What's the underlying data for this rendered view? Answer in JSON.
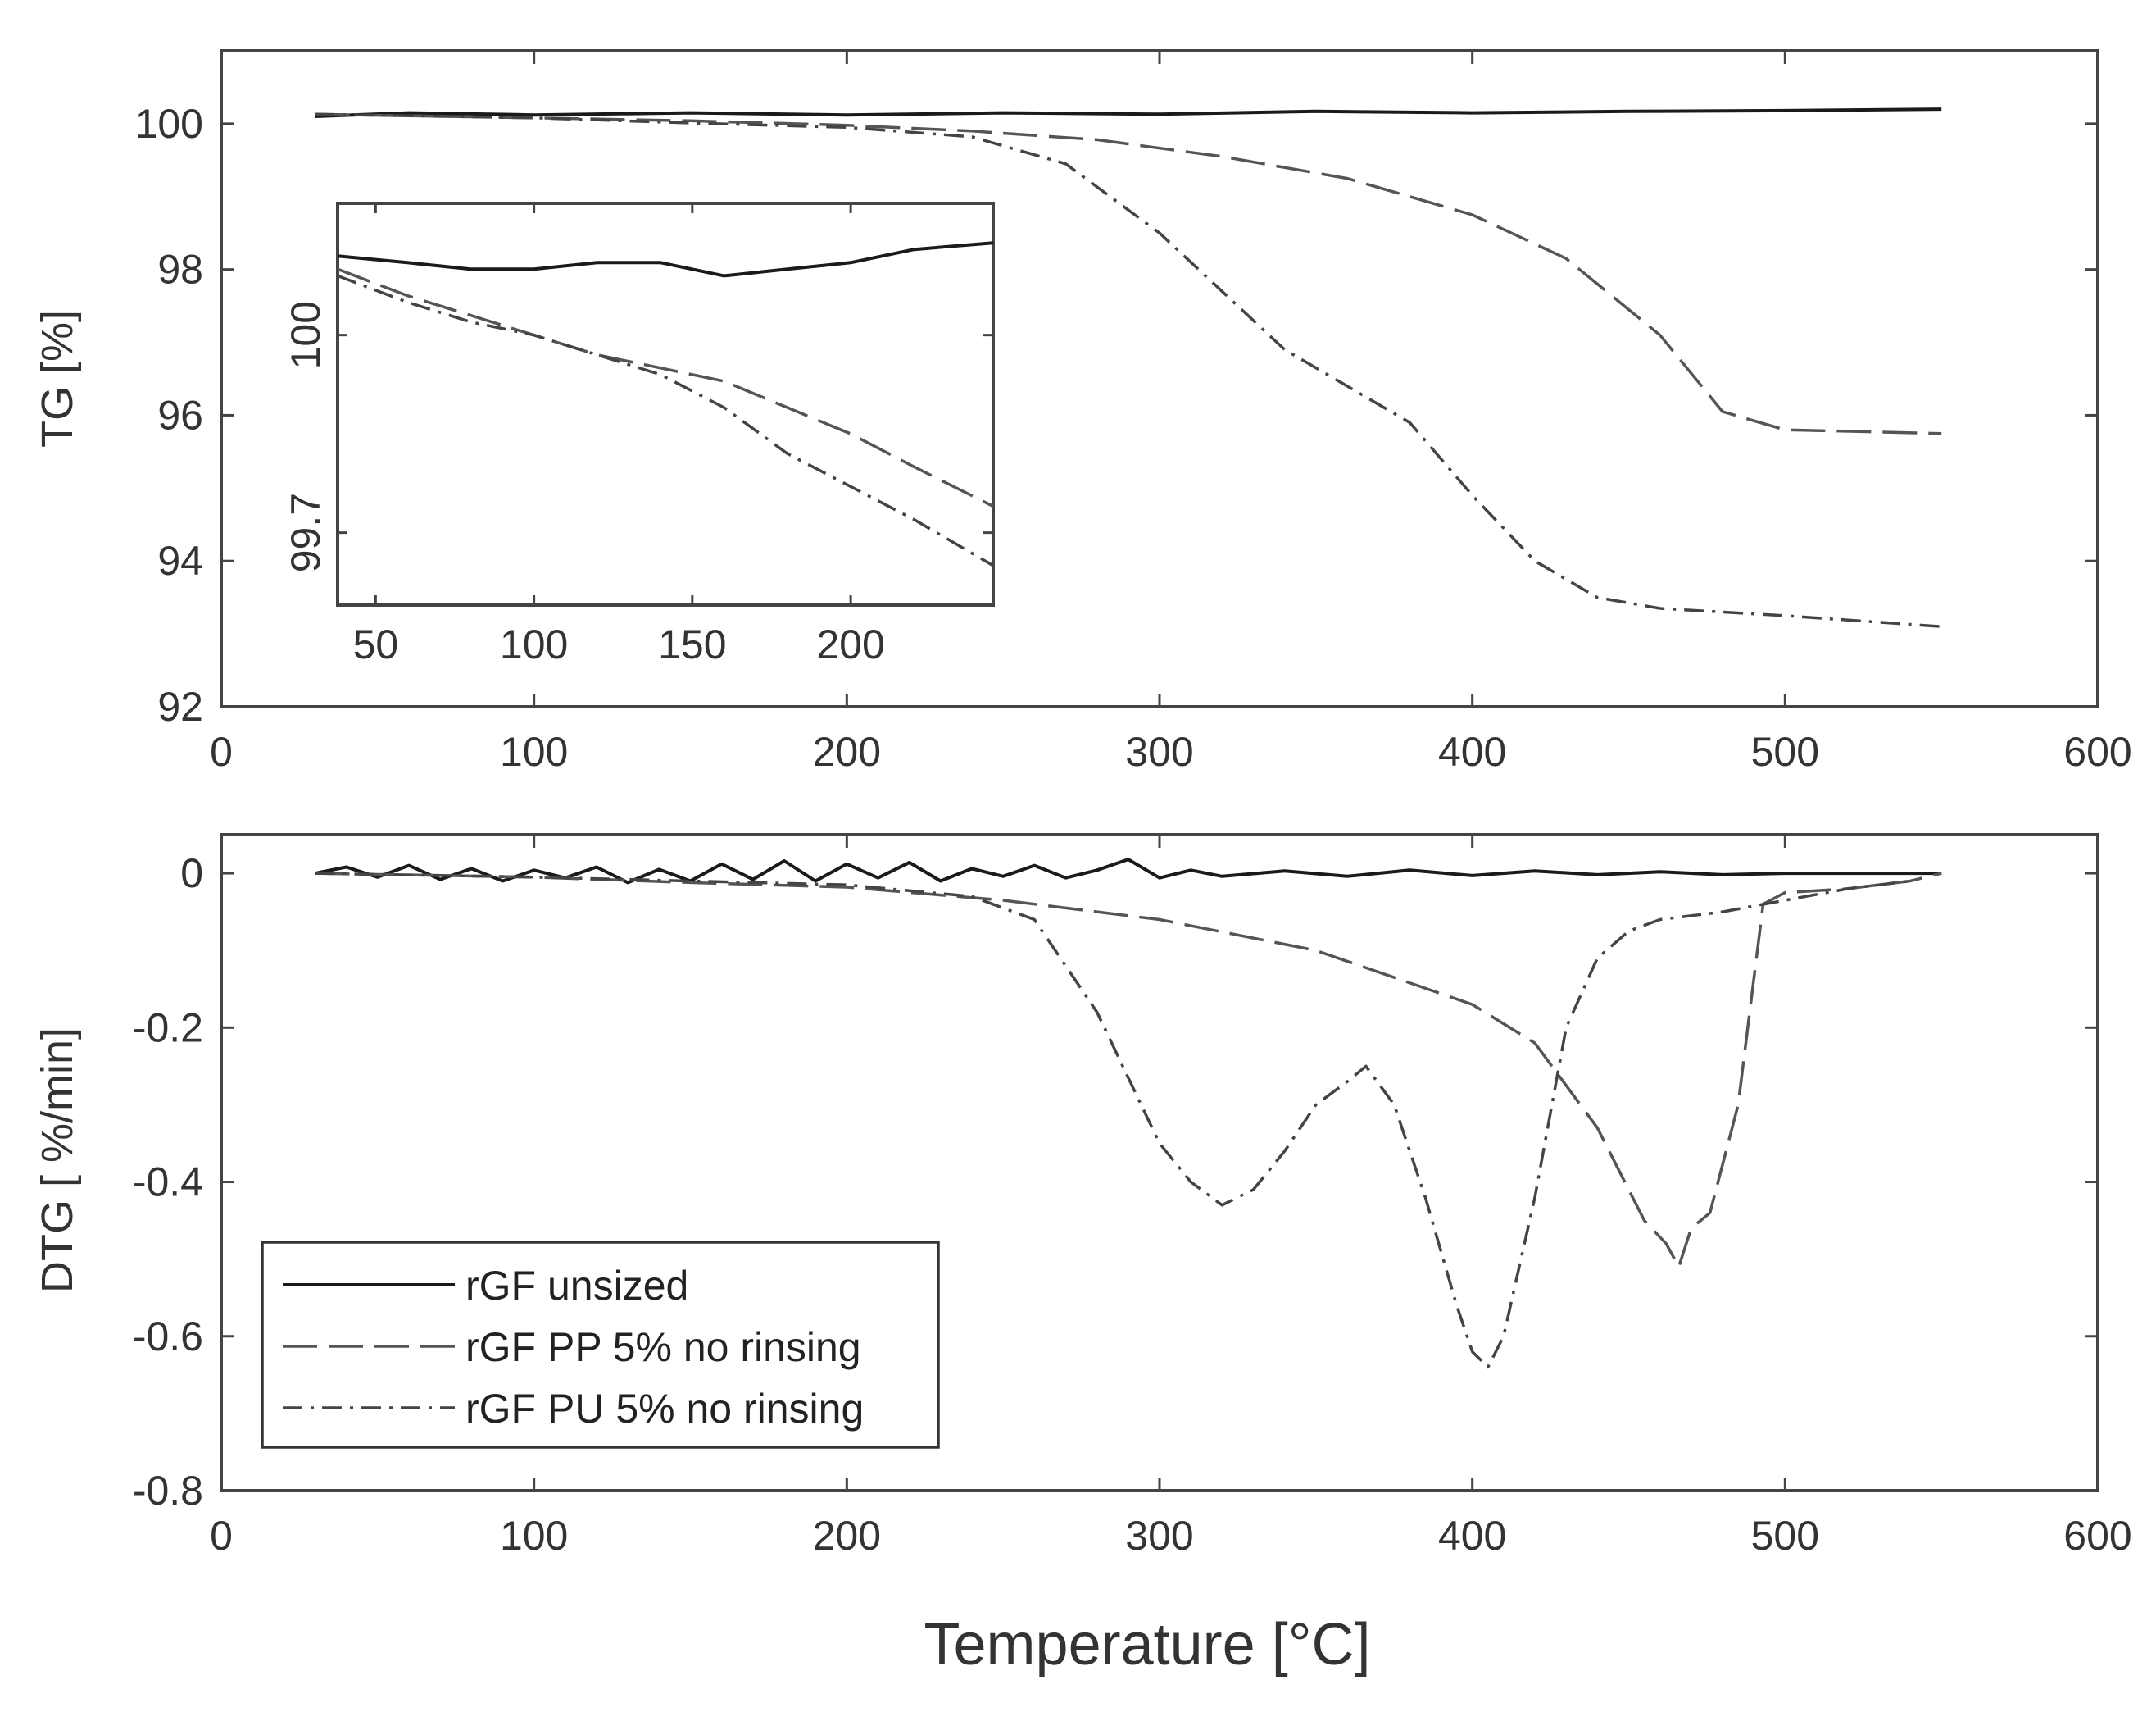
{
  "chart_data": [
    {
      "id": "tg",
      "type": "line",
      "title": "",
      "xlabel": "",
      "ylabel": "TG [%]",
      "xlim": [
        0,
        600
      ],
      "ylim": [
        92,
        101
      ],
      "xticks": [
        "0",
        "100",
        "200",
        "300",
        "400",
        "500",
        "600"
      ],
      "yticks": [
        "92",
        "94",
        "96",
        "98",
        "100"
      ],
      "series": [
        {
          "name": "rGF unsized",
          "style": "solid",
          "x": [
            30,
            60,
            100,
            150,
            200,
            250,
            300,
            350,
            400,
            450,
            500,
            550
          ],
          "y": [
            100.1,
            100.15,
            100.12,
            100.15,
            100.12,
            100.15,
            100.13,
            100.17,
            100.15,
            100.17,
            100.18,
            100.2
          ]
        },
        {
          "name": "rGF PP 5% no rinsing",
          "style": "dashed",
          "x": [
            30,
            100,
            150,
            200,
            240,
            280,
            320,
            360,
            400,
            430,
            460,
            480,
            500,
            550
          ],
          "y": [
            100.13,
            100.08,
            100.04,
            99.98,
            99.9,
            99.78,
            99.55,
            99.25,
            98.75,
            98.15,
            97.1,
            96.05,
            95.8,
            95.75
          ]
        },
        {
          "name": "rGF PU 5% no rinsing",
          "style": "dashdot",
          "x": [
            30,
            100,
            150,
            200,
            240,
            270,
            300,
            320,
            340,
            360,
            380,
            400,
            420,
            440,
            460,
            500,
            550
          ],
          "y": [
            100.13,
            100.08,
            100.01,
            99.95,
            99.82,
            99.45,
            98.5,
            97.7,
            96.9,
            96.4,
            95.9,
            94.9,
            94.0,
            93.5,
            93.35,
            93.25,
            93.1
          ]
        }
      ]
    },
    {
      "id": "tg-inset",
      "type": "line",
      "xlim": [
        38,
        245
      ],
      "ylim": [
        99.59,
        100.2
      ],
      "xticks": [
        "50",
        "100",
        "150",
        "200"
      ],
      "yticks": [
        "99.7",
        "100"
      ],
      "series": [
        {
          "name": "rGF unsized",
          "style": "solid",
          "x": [
            38,
            60,
            80,
            100,
            120,
            140,
            160,
            180,
            200,
            220,
            245
          ],
          "y": [
            100.12,
            100.11,
            100.1,
            100.1,
            100.11,
            100.11,
            100.09,
            100.1,
            100.11,
            100.13,
            100.14
          ]
        },
        {
          "name": "rGF PP 5% no rinsing",
          "style": "dashed",
          "x": [
            38,
            60,
            80,
            100,
            120,
            140,
            160,
            180,
            200,
            220,
            245
          ],
          "y": [
            100.1,
            100.06,
            100.03,
            100.0,
            99.97,
            99.95,
            99.93,
            99.89,
            99.85,
            99.8,
            99.74
          ]
        },
        {
          "name": "rGF PU 5% no rinsing",
          "style": "dashdot",
          "x": [
            38,
            60,
            80,
            100,
            120,
            140,
            160,
            180,
            200,
            220,
            245
          ],
          "y": [
            100.09,
            100.05,
            100.02,
            100.0,
            99.97,
            99.94,
            99.89,
            99.82,
            99.77,
            99.72,
            99.65
          ]
        }
      ]
    },
    {
      "id": "dtg",
      "type": "line",
      "title": "",
      "xlabel": "Temperature [°C]",
      "ylabel": "DTG [ %/min]",
      "xlim": [
        0,
        600
      ],
      "ylim": [
        -0.8,
        0.05
      ],
      "xticks": [
        "0",
        "100",
        "200",
        "300",
        "400",
        "500",
        "600"
      ],
      "yticks": [
        "-0.8",
        "-0.6",
        "-0.4",
        "-0.2",
        "0"
      ],
      "series": [
        {
          "name": "rGF unsized",
          "style": "solid",
          "x": [
            30,
            40,
            50,
            60,
            70,
            80,
            90,
            100,
            110,
            120,
            130,
            140,
            150,
            160,
            170,
            180,
            190,
            200,
            210,
            220,
            230,
            240,
            250,
            260,
            270,
            280,
            290,
            300,
            310,
            320,
            340,
            360,
            380,
            400,
            420,
            440,
            460,
            480,
            500,
            520,
            550
          ],
          "y": [
            0.0,
            0.008,
            -0.005,
            0.01,
            -0.008,
            0.006,
            -0.01,
            0.004,
            -0.006,
            0.008,
            -0.012,
            0.005,
            -0.01,
            0.012,
            -0.008,
            0.016,
            -0.01,
            0.012,
            -0.006,
            0.014,
            -0.01,
            0.006,
            -0.004,
            0.01,
            -0.006,
            0.004,
            0.018,
            -0.006,
            0.004,
            -0.004,
            0.003,
            -0.004,
            0.004,
            -0.003,
            0.003,
            -0.002,
            0.002,
            -0.002,
            0.0,
            0.0,
            0.0
          ]
        },
        {
          "name": "rGF PP 5% no rinsing",
          "style": "dashed",
          "x": [
            30,
            100,
            150,
            200,
            250,
            300,
            350,
            400,
            420,
            440,
            455,
            462,
            466,
            470,
            476,
            485,
            493,
            500,
            520,
            540,
            550
          ],
          "y": [
            0.0,
            -0.005,
            -0.012,
            -0.018,
            -0.035,
            -0.06,
            -0.1,
            -0.17,
            -0.22,
            -0.33,
            -0.45,
            -0.48,
            -0.51,
            -0.46,
            -0.44,
            -0.3,
            -0.04,
            -0.025,
            -0.02,
            -0.01,
            0.0
          ]
        },
        {
          "name": "rGF PU 5% no rinsing",
          "style": "dashdot",
          "x": [
            30,
            100,
            150,
            200,
            240,
            260,
            280,
            300,
            310,
            320,
            330,
            340,
            350,
            360,
            366,
            375,
            385,
            395,
            400,
            405,
            410,
            420,
            430,
            440,
            450,
            460,
            480,
            500,
            520,
            540
          ],
          "y": [
            0.0,
            -0.005,
            -0.01,
            -0.015,
            -0.03,
            -0.06,
            -0.18,
            -0.35,
            -0.4,
            -0.43,
            -0.41,
            -0.36,
            -0.3,
            -0.27,
            -0.25,
            -0.3,
            -0.42,
            -0.56,
            -0.62,
            -0.64,
            -0.6,
            -0.42,
            -0.2,
            -0.11,
            -0.075,
            -0.06,
            -0.05,
            -0.035,
            -0.02,
            -0.01
          ]
        }
      ],
      "legend": {
        "position": "bottom-left",
        "entries": [
          "rGF unsized",
          "rGF PP 5% no rinsing",
          "rGF PU 5% no rinsing"
        ]
      }
    }
  ]
}
